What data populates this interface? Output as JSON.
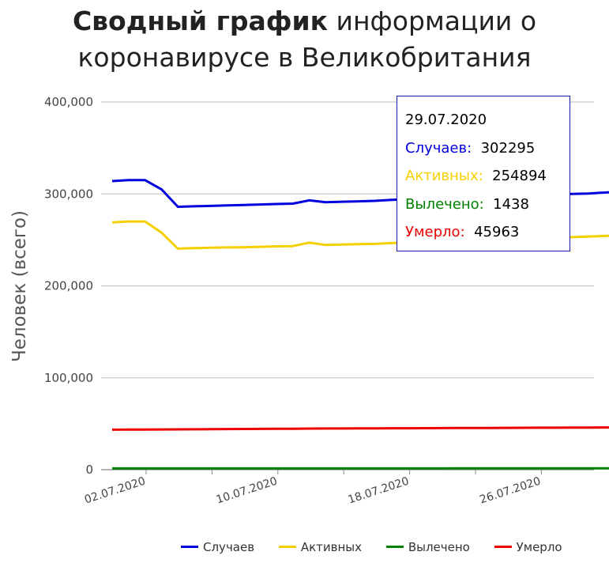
{
  "chart_data": {
    "type": "line",
    "title_bold": "Сводный график",
    "title_rest_line1": "информации о",
    "title_line2": "коронавирусе в Великобритания",
    "ylabel": "Человек (всего)",
    "xlabel": "",
    "ylim": [
      0,
      400000
    ],
    "yticks": [
      {
        "value": 0,
        "label": "0"
      },
      {
        "value": 100000,
        "label": "100,000"
      },
      {
        "value": 200000,
        "label": "200,000"
      },
      {
        "value": 300000,
        "label": "300,000"
      },
      {
        "value": 400000,
        "label": "400,000"
      }
    ],
    "xticks": [
      "02.07.2020",
      "10.07.2020",
      "18.07.2020",
      "26.07.2020"
    ],
    "x": [
      "28.06.2020",
      "29.06.2020",
      "30.06.2020",
      "01.07.2020",
      "02.07.2020",
      "03.07.2020",
      "04.07.2020",
      "05.07.2020",
      "06.07.2020",
      "07.07.2020",
      "08.07.2020",
      "09.07.2020",
      "10.07.2020",
      "11.07.2020",
      "12.07.2020",
      "13.07.2020",
      "14.07.2020",
      "15.07.2020",
      "16.07.2020",
      "17.07.2020",
      "18.07.2020",
      "19.07.2020",
      "20.07.2020",
      "21.07.2020",
      "22.07.2020",
      "23.07.2020",
      "24.07.2020",
      "25.07.2020",
      "26.07.2020",
      "27.07.2020",
      "28.07.2020",
      "29.07.2020"
    ],
    "grid": true,
    "legend_position": "bottom",
    "series": [
      {
        "name": "Случаев",
        "color": "#0000dd",
        "values": [
          314000,
          315000,
          315000,
          305000,
          286000,
          286500,
          287000,
          287500,
          288000,
          288500,
          289000,
          289500,
          293000,
          291000,
          291500,
          292000,
          292500,
          293500,
          294000,
          294500,
          295000,
          295500,
          296000,
          296500,
          297500,
          298000,
          298500,
          299500,
          300000,
          300500,
          301500,
          302295
        ]
      },
      {
        "name": "Активных",
        "color": "#f5d000",
        "values": [
          269000,
          270000,
          270000,
          258000,
          240500,
          241000,
          241500,
          241800,
          242000,
          242500,
          243000,
          243300,
          247000,
          244500,
          245000,
          245300,
          245700,
          246500,
          247000,
          247300,
          247800,
          248500,
          249000,
          249500,
          250500,
          251000,
          251800,
          252500,
          253000,
          253700,
          254300,
          254894
        ]
      },
      {
        "name": "Вылечено",
        "color": "#008000",
        "values": [
          1400,
          1400,
          1400,
          1400,
          1400,
          1400,
          1400,
          1400,
          1400,
          1400,
          1400,
          1400,
          1400,
          1400,
          1400,
          1400,
          1400,
          1400,
          1400,
          1400,
          1400,
          1420,
          1420,
          1420,
          1430,
          1430,
          1430,
          1430,
          1430,
          1438,
          1438,
          1438
        ]
      },
      {
        "name": "Умерло",
        "color": "#ee0000",
        "values": [
          43500,
          43600,
          43700,
          43800,
          43900,
          44000,
          44100,
          44200,
          44300,
          44400,
          44500,
          44600,
          44700,
          44800,
          44850,
          44900,
          45000,
          45050,
          45100,
          45200,
          45250,
          45300,
          45400,
          45450,
          45500,
          45600,
          45650,
          45700,
          45800,
          45850,
          45900,
          45963
        ]
      }
    ]
  },
  "tooltip": {
    "date": "29.07.2020",
    "rows": [
      {
        "label": "Случаев:",
        "value": "302295",
        "color": "#0000dd"
      },
      {
        "label": "Активных:",
        "value": "254894",
        "color": "#f5d000"
      },
      {
        "label": "Вылечено:",
        "value": "1438",
        "color": "#008000"
      },
      {
        "label": "Умерло:",
        "value": "45963",
        "color": "#ee0000"
      }
    ]
  },
  "legend": [
    {
      "label": "Случаев",
      "color": "#0000dd"
    },
    {
      "label": "Активных",
      "color": "#f5d000"
    },
    {
      "label": "Вылечено",
      "color": "#008000"
    },
    {
      "label": "Умерло",
      "color": "#ee0000"
    }
  ]
}
